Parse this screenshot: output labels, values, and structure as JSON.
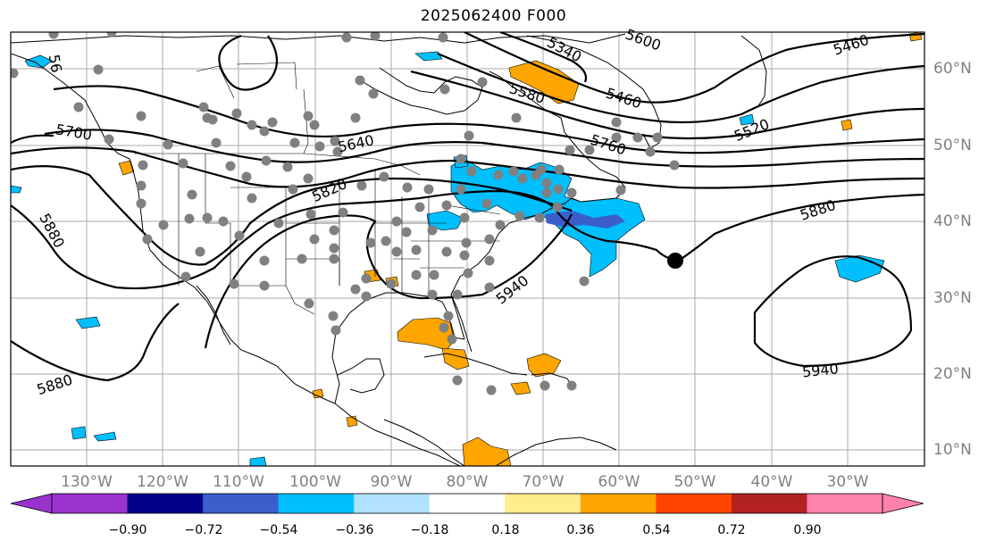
{
  "title": "2025062400 F000",
  "map": {
    "projection": "PlateCarree",
    "lon_labels": [
      "130°W",
      "120°W",
      "110°W",
      "100°W",
      "90°W",
      "80°W",
      "70°W",
      "60°W",
      "50°W",
      "40°W",
      "30°W"
    ],
    "lat_labels": [
      "60°N",
      "50°N",
      "40°N",
      "30°N",
      "20°N",
      "10°N"
    ],
    "contour_labels": [
      "5460",
      "5340",
      "5580",
      "5460",
      "5520",
      "5700",
      "5640",
      "5760",
      "5820",
      "5880",
      "5880",
      "5880",
      "5940",
      "5940",
      "5600",
      "56"
    ],
    "station_color": "#808080",
    "marker_color": "#000000",
    "positive_color": "#ffa500",
    "negative_color": "#00bfff"
  },
  "colorbar": {
    "colors": [
      "#9a32cd",
      "#00008b",
      "#3a5fcd",
      "#00bfff",
      "#b0e2ff",
      "#ffffff",
      "#ffec8b",
      "#ffa500",
      "#ff4500",
      "#b22222",
      "#ff82ab"
    ],
    "extend_low_color": "#9a32cd",
    "extend_high_color": "#ff82ab",
    "ticks": [
      "−0.90",
      "−0.72",
      "−0.54",
      "−0.36",
      "−0.18",
      "0.18",
      "0.36",
      "0.54",
      "0.72",
      "0.90"
    ]
  }
}
